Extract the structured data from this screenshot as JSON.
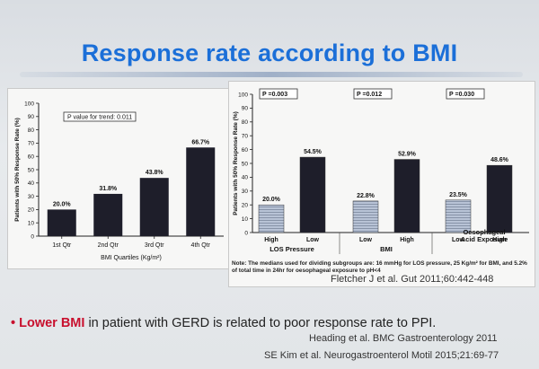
{
  "slide": {
    "title": "Response rate according to BMI",
    "footnote": "Note: The medians used for dividing subgroups are: 16 mmHg for LOS pressure, 25 Kg/m² for BMI, and 5.2% of total time in 24hr for oesophageal exposure to pH<4",
    "citation": "Fletcher J et al. Gut 2011;60:442-448",
    "bullet_prefix": "Lower BMI",
    "bullet_rest": " in patient with GERD is related to poor response rate to PPI.",
    "ref1": "Heading et al. BMC Gastroenterology 2011",
    "ref2": "SE Kim et al. Neurogastroenterol Motil 2015;21:69-77",
    "colors": {
      "title": "#1b6fd8",
      "bullet_emphasis": "#c8102e",
      "bar_dark": "#1e1e2a",
      "bar_light": "#b8c3d6"
    }
  },
  "chart_data": [
    {
      "type": "bar",
      "ylabel": "Patients with 50% Response Rate (%)",
      "xlabel": "BMI Quartiles (Kg/m²)",
      "ylim": [
        0,
        100
      ],
      "yticks": [
        "0",
        "10",
        "20",
        "30",
        "40",
        "50",
        "60",
        "70",
        "80",
        "90",
        "100"
      ],
      "annotation": "P value for trend: 0.011",
      "categories": [
        "1st Qtr",
        "2nd Qtr",
        "3rd Qtr",
        "4th Qtr"
      ],
      "values": [
        20.0,
        31.8,
        43.8,
        66.7
      ],
      "labels": [
        "20.0%",
        "31.8%",
        "43.8%",
        "66.7%"
      ],
      "grid": false
    },
    {
      "type": "bar",
      "ylabel": "Patients with 50% Response Rate (%)",
      "ylim": [
        0,
        100
      ],
      "yticks": [
        "0",
        "10",
        "20",
        "30",
        "40",
        "50",
        "60",
        "70",
        "80",
        "90",
        "100"
      ],
      "groups": [
        {
          "name": "LOS Pressure",
          "p": "P =0.003",
          "categories": [
            "High",
            "Low"
          ],
          "values": [
            20.0,
            54.5
          ],
          "labels": [
            "20.0%",
            "54.5%"
          ]
        },
        {
          "name": "BMI",
          "p": "P =0.012",
          "categories": [
            "Low",
            "High"
          ],
          "values": [
            22.8,
            52.9
          ],
          "labels": [
            "22.8%",
            "52.9%"
          ]
        },
        {
          "name": "Oesophageal Acid Exposure",
          "name_lines": [
            "Oesophageal",
            "Acid Exposure"
          ],
          "p": "P =0.030",
          "categories": [
            "Low",
            "High"
          ],
          "values": [
            23.5,
            48.6
          ],
          "labels": [
            "23.5%",
            "48.6%"
          ]
        }
      ],
      "grid": false
    }
  ]
}
